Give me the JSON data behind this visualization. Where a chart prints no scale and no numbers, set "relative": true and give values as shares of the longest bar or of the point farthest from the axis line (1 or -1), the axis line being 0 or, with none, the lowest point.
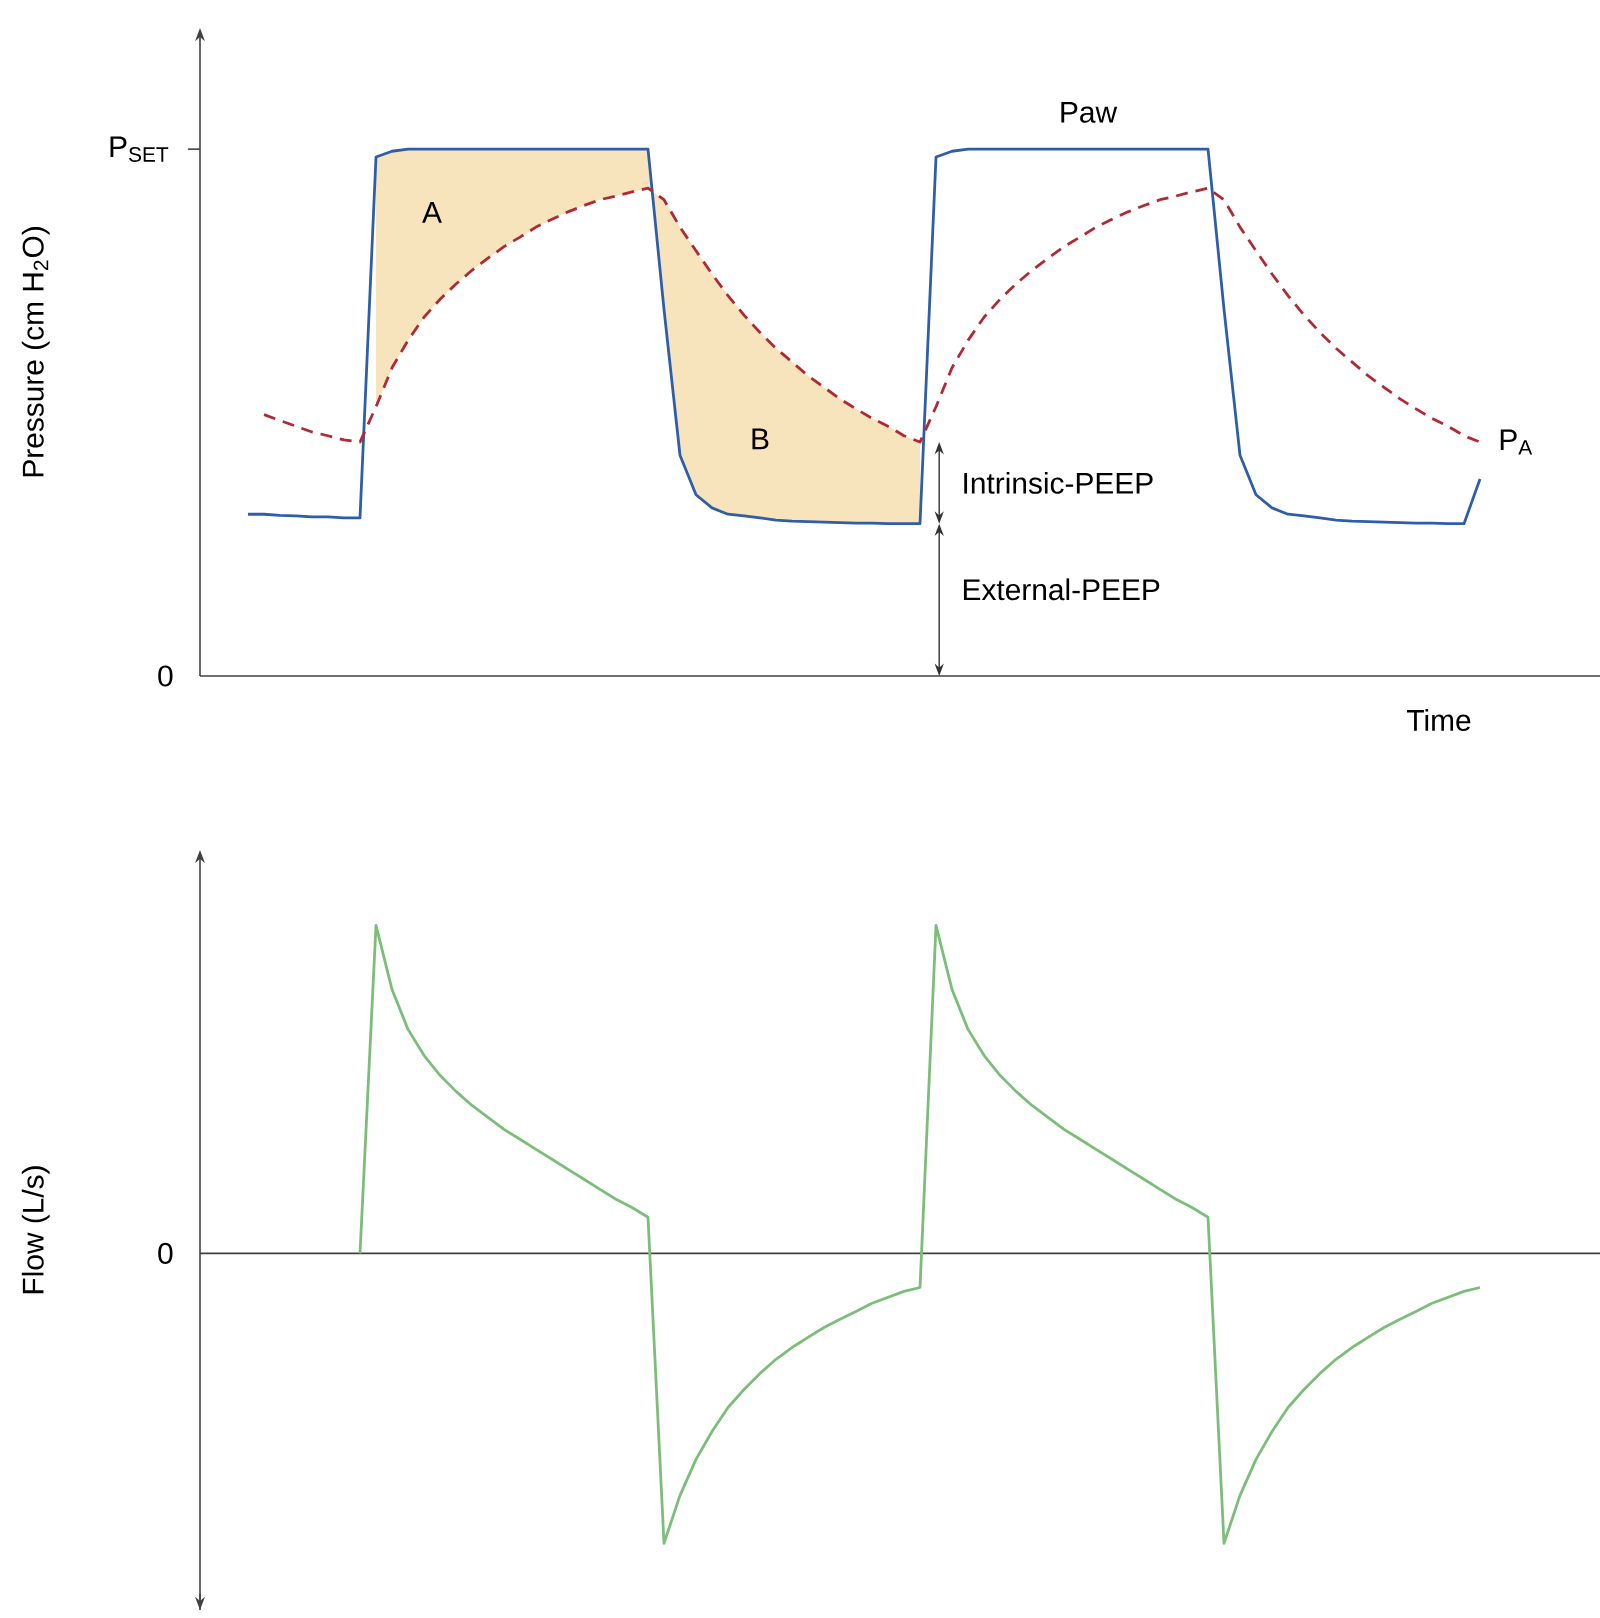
{
  "chart_data": [
    {
      "type": "line",
      "relative": true,
      "ylabel": "Pressure (cm H$_{2}$O)",
      "xlabel": "Time",
      "categories": [
        null,
        null,
        null,
        null,
        null,
        null,
        null,
        null,
        null,
        null,
        null,
        null,
        null,
        null,
        null,
        null,
        null,
        null,
        null,
        null,
        null,
        null,
        null,
        null,
        null,
        null,
        null,
        null,
        null,
        null,
        null,
        null,
        null,
        null,
        null,
        null,
        null,
        null,
        null,
        null,
        null,
        null,
        null,
        null,
        null,
        null,
        null,
        null,
        null,
        null,
        null,
        null,
        null,
        null,
        null,
        null,
        null,
        null,
        null,
        null,
        null,
        null,
        null,
        null,
        null,
        null,
        null,
        null,
        null,
        null,
        null,
        null,
        null,
        null,
        null,
        null,
        null,
        null,
        null,
        null,
        null,
        null,
        null,
        null,
        null,
        null,
        null,
        null
      ],
      "series": [
        {
          "name": "Paw",
          "color": "#2f5ea8",
          "line_style": "solid",
          "values": [
            null,
            null,
            null,
            0.307,
            0.307,
            0.305,
            0.304,
            0.302,
            0.302,
            0.3,
            0.3,
            0.985,
            0.996,
            1.0,
            1.0,
            1.0,
            1.0,
            1.0,
            1.0,
            1.0,
            1.0,
            1.0,
            1.0,
            1.0,
            1.0,
            1.0,
            1.0,
            1.0,
            1.0,
            0.696,
            0.419,
            0.344,
            0.319,
            0.307,
            0.304,
            0.3,
            0.296,
            0.294,
            0.293,
            0.292,
            0.291,
            0.29,
            0.29,
            0.289,
            0.289,
            0.289,
            0.985,
            0.996,
            1.0,
            1.0,
            1.0,
            1.0,
            1.0,
            1.0,
            1.0,
            1.0,
            1.0,
            1.0,
            1.0,
            1.0,
            1.0,
            1.0,
            1.0,
            1.0,
            0.696,
            0.419,
            0.344,
            0.319,
            0.307,
            0.304,
            0.3,
            0.296,
            0.294,
            0.293,
            0.292,
            0.291,
            0.29,
            0.29,
            0.289,
            0.289,
            0.374,
            null,
            null,
            null,
            null,
            null,
            null,
            null
          ]
        },
        {
          "name": "P$_{A}$",
          "color": "#b02a35",
          "line_style": "dashed",
          "values": [
            null,
            null,
            null,
            null,
            0.496,
            0.485,
            0.474,
            0.463,
            0.456,
            0.448,
            0.444,
            0.511,
            0.585,
            0.637,
            0.681,
            0.715,
            0.744,
            0.77,
            0.793,
            0.815,
            0.833,
            0.852,
            0.867,
            0.881,
            0.893,
            0.904,
            0.911,
            0.919,
            0.926,
            0.904,
            0.852,
            0.807,
            0.763,
            0.722,
            0.685,
            0.652,
            0.622,
            0.596,
            0.57,
            0.548,
            0.526,
            0.507,
            0.489,
            0.474,
            0.456,
            0.444,
            0.511,
            0.585,
            0.637,
            0.681,
            0.715,
            0.744,
            0.77,
            0.793,
            0.815,
            0.833,
            0.852,
            0.867,
            0.881,
            0.893,
            0.904,
            0.911,
            0.919,
            0.926,
            0.904,
            0.852,
            0.807,
            0.763,
            0.722,
            0.685,
            0.652,
            0.622,
            0.596,
            0.57,
            0.548,
            0.526,
            0.507,
            0.489,
            0.474,
            0.456,
            0.444,
            null,
            null,
            null,
            null,
            null,
            null,
            null
          ]
        }
      ],
      "annotations": [
        "0",
        "P$_{SET}$",
        "A",
        "B",
        "Intrinsic-PEEP",
        "External-PEEP"
      ]
    },
    {
      "type": "line",
      "relative": true,
      "ylabel": "Flow (L/s)",
      "categories": [
        null,
        null,
        null,
        null,
        null,
        null,
        null,
        null,
        null,
        null,
        null,
        null,
        null,
        null,
        null,
        null,
        null,
        null,
        null,
        null,
        null,
        null,
        null,
        null,
        null,
        null,
        null,
        null,
        null,
        null,
        null,
        null,
        null,
        null,
        null,
        null,
        null,
        null,
        null,
        null,
        null,
        null,
        null,
        null,
        null,
        null,
        null,
        null,
        null,
        null,
        null,
        null,
        null,
        null,
        null,
        null,
        null,
        null,
        null,
        null,
        null,
        null,
        null,
        null,
        null,
        null,
        null,
        null,
        null,
        null,
        null,
        null,
        null,
        null,
        null,
        null,
        null,
        null,
        null,
        null,
        null,
        null,
        null,
        null,
        null,
        null,
        null,
        null
      ],
      "series": [
        {
          "color": "#7dbd7a",
          "values": [
            null,
            null,
            null,
            null,
            null,
            null,
            null,
            null,
            null,
            null,
            0,
            1.0,
            0.805,
            0.683,
            0.604,
            0.543,
            0.494,
            0.451,
            0.415,
            0.378,
            0.348,
            0.317,
            0.287,
            0.256,
            0.226,
            0.195,
            0.165,
            0.14,
            0.11,
            -0.884,
            -0.738,
            -0.628,
            -0.543,
            -0.47,
            -0.415,
            -0.366,
            -0.323,
            -0.287,
            -0.256,
            -0.226,
            -0.201,
            -0.177,
            -0.152,
            -0.134,
            -0.116,
            -0.104,
            1.0,
            0.805,
            0.683,
            0.604,
            0.543,
            0.494,
            0.451,
            0.415,
            0.378,
            0.348,
            0.317,
            0.287,
            0.256,
            0.226,
            0.195,
            0.165,
            0.14,
            0.11,
            -0.884,
            -0.738,
            -0.628,
            -0.543,
            -0.47,
            -0.415,
            -0.366,
            -0.323,
            -0.287,
            -0.256,
            -0.226,
            -0.201,
            -0.177,
            -0.152,
            -0.134,
            -0.116,
            -0.104,
            null,
            null,
            null,
            null,
            null,
            null,
            null
          ]
        }
      ],
      "annotations": [
        "0"
      ]
    }
  ]
}
